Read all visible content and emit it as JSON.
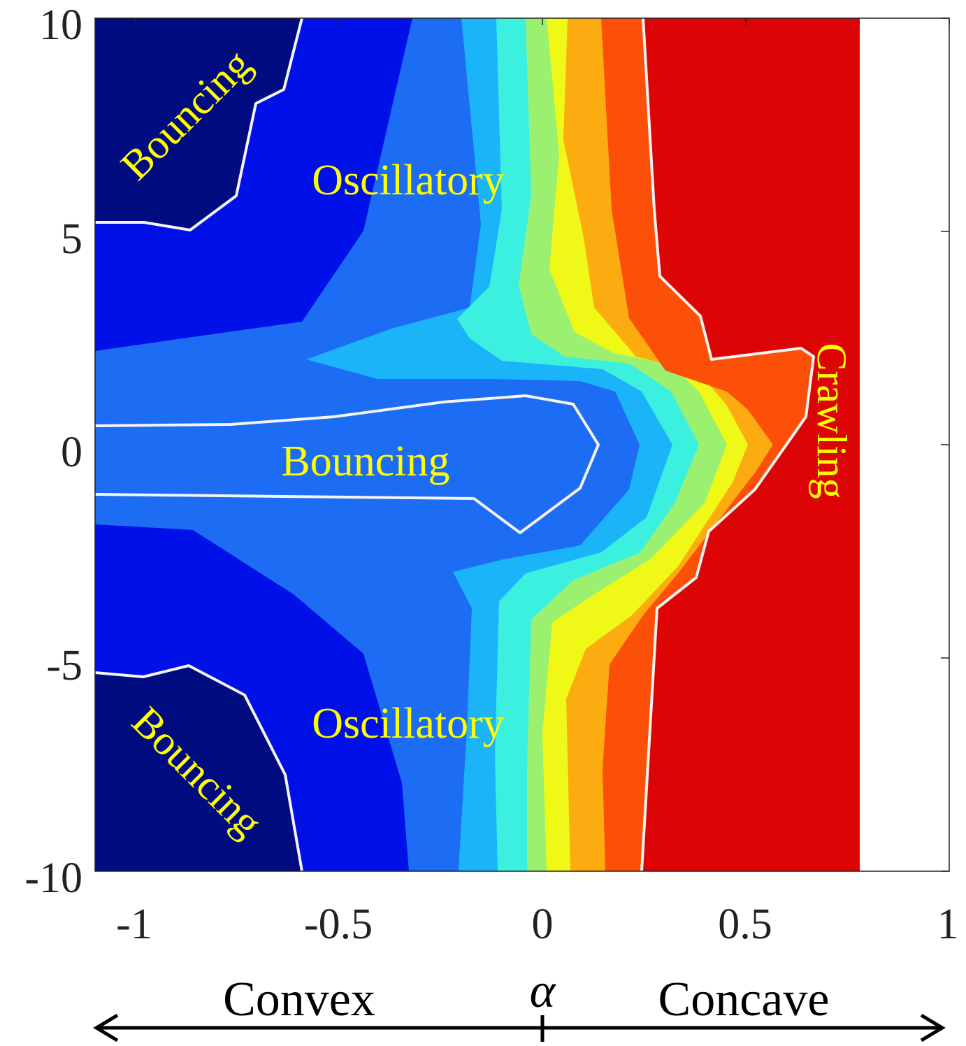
{
  "chart_data": {
    "type": "contour",
    "title": "",
    "xlabel": "α",
    "ylabel": "",
    "xlim": [
      -1.1,
      1.0
    ],
    "ylim": [
      -10,
      10
    ],
    "data_extent_x": [
      -1.1,
      0.78
    ],
    "x_ticks": [
      "-1",
      "-0.5",
      "0",
      "0.5",
      "1"
    ],
    "x_tick_values": [
      -1,
      -0.5,
      0,
      0.5,
      1
    ],
    "y_ticks": [
      "10",
      "5",
      "0",
      "-5",
      "-10"
    ],
    "y_tick_values": [
      10,
      5,
      0,
      -5,
      -10
    ],
    "colormap": [
      "#000c80",
      "#0010e8",
      "#1c6cf4",
      "#1cb4f8",
      "#3cf0e0",
      "#9cf070",
      "#f0f818",
      "#fcac10",
      "#fc5008",
      "#dc0404"
    ],
    "regions": [
      {
        "label": "Bouncing",
        "position": "top-left",
        "rotation": -45
      },
      {
        "label": "Oscillatory",
        "position": "upper-center",
        "rotation": 0
      },
      {
        "label": "Bouncing",
        "position": "center",
        "rotation": 0
      },
      {
        "label": "Oscillatory",
        "position": "lower-center",
        "rotation": 0
      },
      {
        "label": "Bouncing",
        "position": "bottom-left",
        "rotation": 45
      },
      {
        "label": "Crawling",
        "position": "right",
        "rotation": 90
      }
    ],
    "annotations": {
      "left_label": "Convex",
      "right_label": "Concave",
      "center_symbol": "α"
    }
  }
}
